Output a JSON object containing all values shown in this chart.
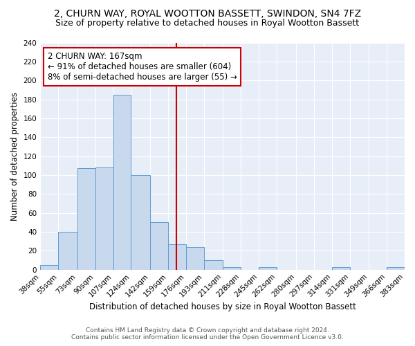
{
  "title": "2, CHURN WAY, ROYAL WOOTTON BASSETT, SWINDON, SN4 7FZ",
  "subtitle": "Size of property relative to detached houses in Royal Wootton Bassett",
  "xlabel": "Distribution of detached houses by size in Royal Wootton Bassett",
  "ylabel": "Number of detached properties",
  "bin_labels": [
    "38sqm",
    "55sqm",
    "73sqm",
    "90sqm",
    "107sqm",
    "124sqm",
    "142sqm",
    "159sqm",
    "176sqm",
    "193sqm",
    "211sqm",
    "228sqm",
    "245sqm",
    "262sqm",
    "280sqm",
    "297sqm",
    "314sqm",
    "331sqm",
    "349sqm",
    "366sqm",
    "383sqm"
  ],
  "bar_values": [
    5,
    40,
    107,
    108,
    185,
    100,
    50,
    27,
    24,
    10,
    3,
    0,
    3,
    0,
    0,
    0,
    3,
    0,
    0,
    3
  ],
  "bin_edges": [
    38,
    55,
    73,
    90,
    107,
    124,
    142,
    159,
    176,
    193,
    211,
    228,
    245,
    262,
    280,
    297,
    314,
    331,
    349,
    366,
    383
  ],
  "bar_color": "#c9d9ed",
  "bar_edge_color": "#5b9bd5",
  "vline_x": 167,
  "vline_color": "#cc0000",
  "annotation_title": "2 CHURN WAY: 167sqm",
  "annotation_line1": "← 91% of detached houses are smaller (604)",
  "annotation_line2": "8% of semi-detached houses are larger (55) →",
  "annotation_box_color": "#ffffff",
  "annotation_border_color": "#cc0000",
  "ylim": [
    0,
    240
  ],
  "yticks": [
    0,
    20,
    40,
    60,
    80,
    100,
    120,
    140,
    160,
    180,
    200,
    220,
    240
  ],
  "footer_line1": "Contains HM Land Registry data © Crown copyright and database right 2024.",
  "footer_line2": "Contains public sector information licensed under the Open Government Licence v3.0.",
  "plot_bg_color": "#e8eef7",
  "title_fontsize": 10,
  "subtitle_fontsize": 9,
  "axis_label_fontsize": 8.5,
  "tick_fontsize": 7.5,
  "annotation_fontsize": 8.5,
  "footer_fontsize": 6.5
}
